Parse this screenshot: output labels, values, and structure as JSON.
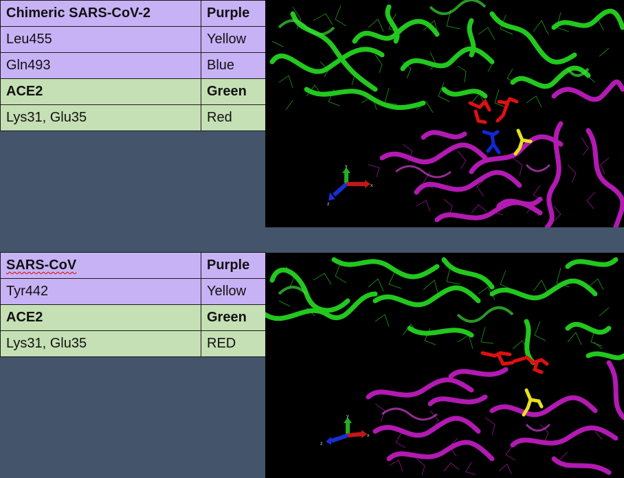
{
  "top_table": {
    "rows": [
      {
        "label": "Chimeric SARS-CoV-2",
        "color": "Purple"
      },
      {
        "label": "Leu455",
        "color": "Yellow"
      },
      {
        "label": "Gln493",
        "color": "Blue"
      },
      {
        "label": "ACE2",
        "color": "Green"
      },
      {
        "label": "Lys31, Glu35",
        "color": "Red"
      }
    ]
  },
  "bottom_table": {
    "rows": [
      {
        "label": "SARS-CoV",
        "color": "Purple"
      },
      {
        "label": "Tyr442",
        "color": "Yellow"
      },
      {
        "label": "ACE2",
        "color": "Green"
      },
      {
        "label": "Lys31, Glu35",
        "color": "RED"
      }
    ]
  },
  "colors": {
    "slide_background": "#44546a",
    "purple_row": "#c8b2f6",
    "green_row": "#c5e0b4",
    "ace2_ribbon": "#22c81e",
    "spike_ribbon": "#b21ab2",
    "residue_red": "#e01010",
    "residue_yellow": "#e8e020",
    "residue_blue": "#1028d8"
  },
  "axis_labels": {
    "x": "x",
    "y": "y",
    "z": "z"
  }
}
